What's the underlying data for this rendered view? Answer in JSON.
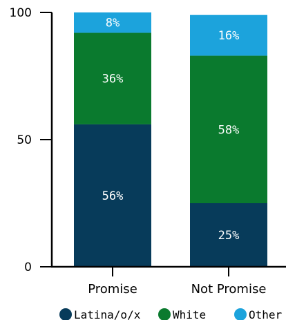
{
  "chart_data": {
    "type": "bar",
    "stacked": true,
    "categories": [
      "Promise",
      "Not Promise"
    ],
    "series": [
      {
        "name": "Latina/o/x",
        "values": [
          56,
          25
        ],
        "labels": [
          "56%",
          "25%"
        ],
        "color": "#073b5a"
      },
      {
        "name": "White",
        "values": [
          36,
          58
        ],
        "labels": [
          "36%",
          "58%"
        ],
        "color": "#0a7a2e"
      },
      {
        "name": "Other",
        "values": [
          8,
          16
        ],
        "labels": [
          "8%",
          "16%"
        ],
        "color": "#1ca3dc"
      }
    ],
    "y_ticks": [
      0,
      50,
      100
    ],
    "ylim": [
      0,
      100
    ],
    "grid": false,
    "legend_position": "bottom",
    "axis_color": "#000000"
  }
}
